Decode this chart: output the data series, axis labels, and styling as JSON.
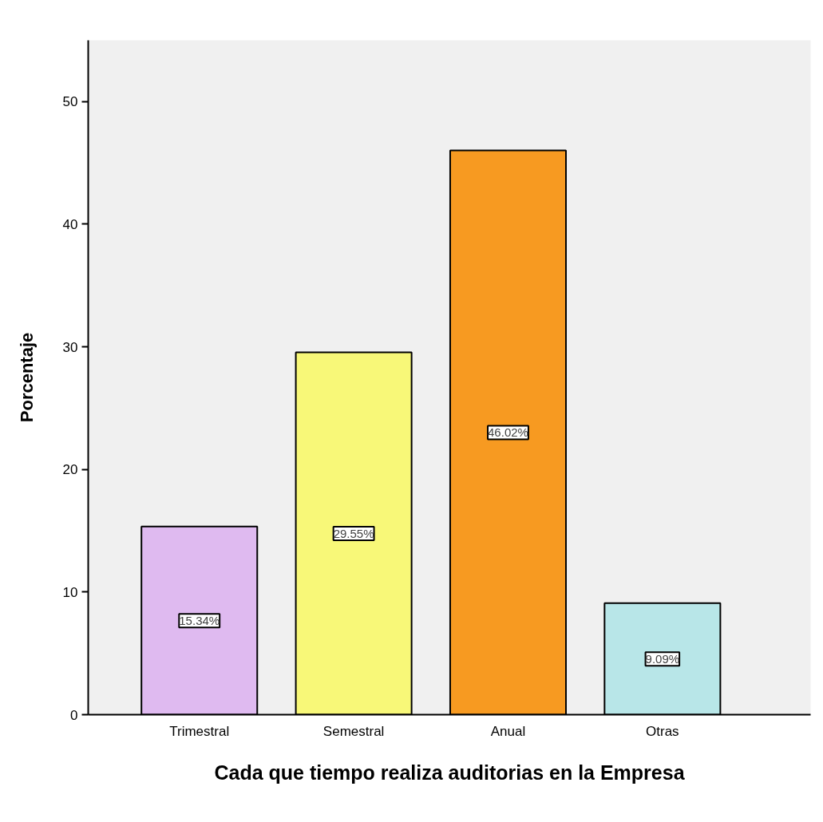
{
  "chart_data": {
    "type": "bar",
    "xlabel": "Cada que tiempo realiza auditorias en la Empresa",
    "ylabel": "Porcentaje",
    "categories": [
      "Trimestral",
      "Semestral",
      "Anual",
      "Otras"
    ],
    "values": [
      15.34,
      29.55,
      46.02,
      9.09
    ],
    "colors": [
      "#dfbaf0",
      "#f8f878",
      "#f79a21",
      "#b8e6e8"
    ],
    "value_labels": [
      "15.34%",
      "29.55%",
      "46.02%",
      "9.09%"
    ],
    "ylim": [
      0,
      55
    ],
    "yticks": [
      0,
      10,
      20,
      30,
      40,
      50
    ],
    "grid": false
  }
}
